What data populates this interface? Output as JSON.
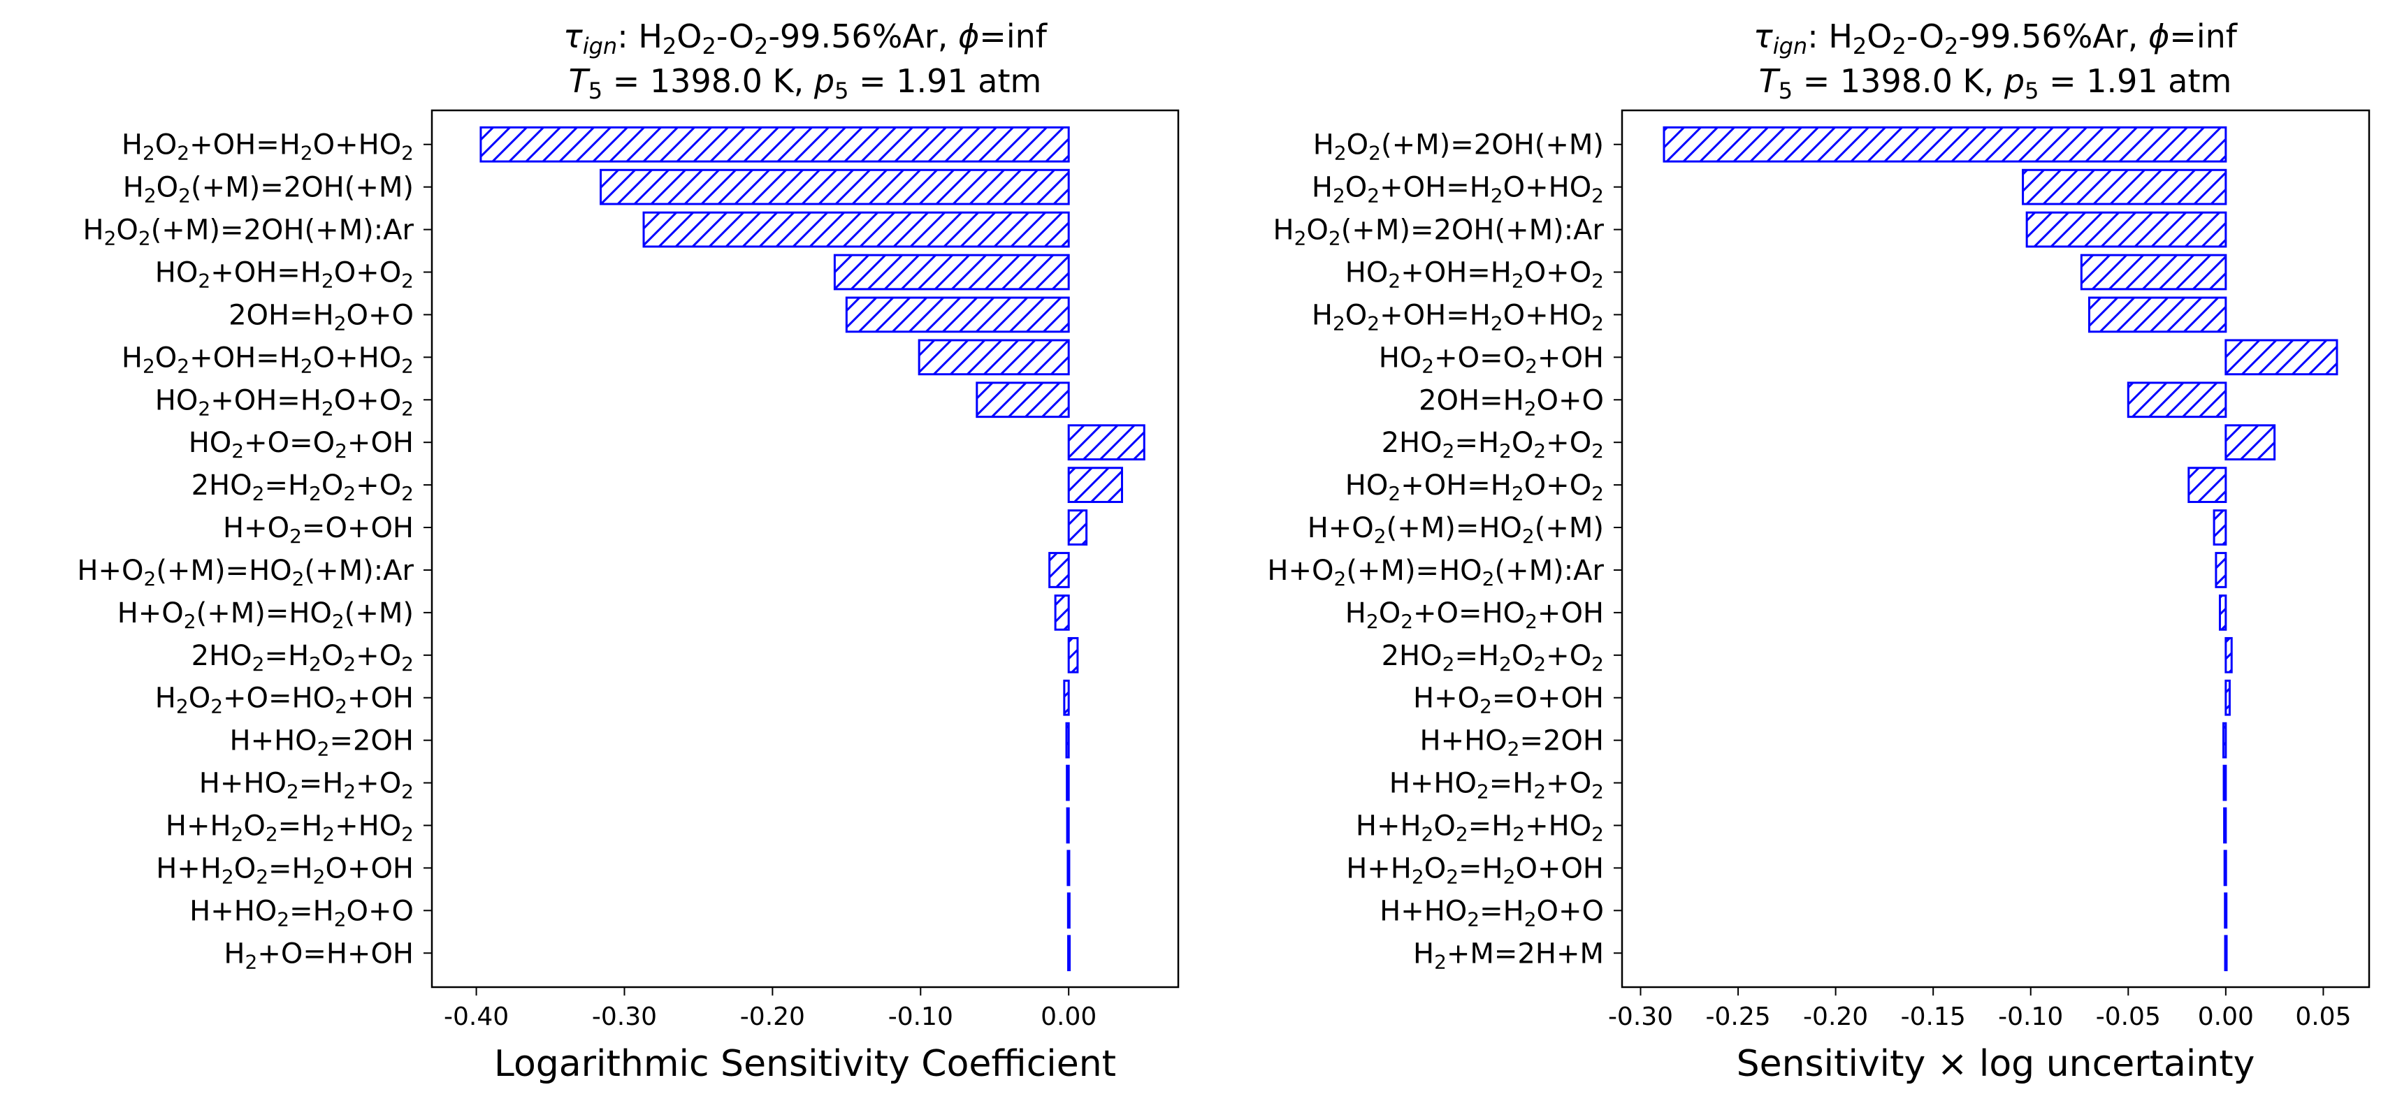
{
  "figure": {
    "panels": 2,
    "bar_color": "#0000ff",
    "hatch": "diagonal-forward"
  },
  "chart_data": [
    {
      "type": "bar",
      "orientation": "horizontal",
      "title_main": "τign: H2O2-O2-99.56%Ar, ϕ=inf",
      "title_conditions": "T5 = 1398.0 K, p5 = 1.91 atm",
      "xlabel": "Logarithmic Sensitivity Coefficient",
      "ylabel": "",
      "xlim": [
        -0.43,
        0.074
      ],
      "xticks": [
        -0.4,
        -0.3,
        -0.2,
        -0.1,
        0.0
      ],
      "xtick_labels": [
        "-0.40",
        "-0.30",
        "-0.20",
        "-0.10",
        "0.00"
      ],
      "grid": false,
      "categories": [
        "H2O2+OH=H2O+HO2",
        "H2O2(+M)=2OH(+M)",
        "H2O2(+M)=2OH(+M):Ar",
        "HO2+OH=H2O+O2",
        "2OH=H2O+O",
        "H2O2+OH=H2O+HO2",
        "HO2+OH=H2O+O2",
        "HO2+O=O2+OH",
        "2HO2=H2O2+O2",
        "H+O2=O+OH",
        "H+O2(+M)=HO2(+M):Ar",
        "H+O2(+M)=HO2(+M)",
        "2HO2=H2O2+O2",
        "H2O2+O=HO2+OH",
        "H+HO2=2OH",
        "H+HO2=H2+O2",
        "H+H2O2=H2+HO2",
        "H+H2O2=H2O+OH",
        "H+HO2=H2O+O",
        "H2+O=H+OH"
      ],
      "categories_markup": [
        "H<sub>2</sub>O<sub>2</sub>+OH=H<sub>2</sub>O+HO<sub>2</sub>",
        "H<sub>2</sub>O<sub>2</sub>(+M)=2OH(+M)",
        "H<sub>2</sub>O<sub>2</sub>(+M)=2OH(+M):Ar",
        "HO<sub>2</sub>+OH=H<sub>2</sub>O+O<sub>2</sub>",
        "2OH=H<sub>2</sub>O+O",
        "H<sub>2</sub>O<sub>2</sub>+OH=H<sub>2</sub>O+HO<sub>2</sub>",
        "HO<sub>2</sub>+OH=H<sub>2</sub>O+O<sub>2</sub>",
        "HO<sub>2</sub>+O=O<sub>2</sub>+OH",
        "2HO<sub>2</sub>=H<sub>2</sub>O<sub>2</sub>+O<sub>2</sub>",
        "H+O<sub>2</sub>=O+OH",
        "H+O<sub>2</sub>(+M)=HO<sub>2</sub>(+M):Ar",
        "H+O<sub>2</sub>(+M)=HO<sub>2</sub>(+M)",
        "2HO<sub>2</sub>=H<sub>2</sub>O<sub>2</sub>+O<sub>2</sub>",
        "H<sub>2</sub>O<sub>2</sub>+O=HO<sub>2</sub>+OH",
        "H+HO<sub>2</sub>=2OH",
        "H+HO<sub>2</sub>=H<sub>2</sub>+O<sub>2</sub>",
        "H+H<sub>2</sub>O<sub>2</sub>=H<sub>2</sub>+HO<sub>2</sub>",
        "H+H<sub>2</sub>O<sub>2</sub>=H<sub>2</sub>O+OH",
        "H+HO<sub>2</sub>=H<sub>2</sub>O+O",
        "H<sub>2</sub>+O=H+OH"
      ],
      "values": [
        -0.397,
        -0.316,
        -0.287,
        -0.158,
        -0.15,
        -0.101,
        -0.062,
        0.051,
        0.036,
        0.012,
        -0.013,
        -0.009,
        0.006,
        -0.003,
        -0.0015,
        -0.0012,
        -0.001,
        -0.0006,
        -0.0004,
        -0.0003
      ]
    },
    {
      "type": "bar",
      "orientation": "horizontal",
      "title_main": "τign: H2O2-O2-99.56%Ar, ϕ=inf",
      "title_conditions": "T5 = 1398.0 K, p5 = 1.91 atm",
      "xlabel": "Sensitivity × log uncertainty",
      "ylabel": "",
      "xlim": [
        -0.3095,
        0.0735
      ],
      "xticks": [
        -0.3,
        -0.25,
        -0.2,
        -0.15,
        -0.1,
        -0.05,
        0.0,
        0.05
      ],
      "xtick_labels": [
        "-0.30",
        "-0.25",
        "-0.20",
        "-0.15",
        "-0.10",
        "-0.05",
        "0.00",
        "0.05"
      ],
      "grid": false,
      "categories": [
        "H2O2(+M)=2OH(+M)",
        "H2O2+OH=H2O+HO2",
        "H2O2(+M)=2OH(+M):Ar",
        "HO2+OH=H2O+O2",
        "H2O2+OH=H2O+HO2",
        "HO2+O=O2+OH",
        "2OH=H2O+O",
        "2HO2=H2O2+O2",
        "HO2+OH=H2O+O2",
        "H+O2(+M)=HO2(+M)",
        "H+O2(+M)=HO2(+M):Ar",
        "H2O2+O=HO2+OH",
        "2HO2=H2O2+O2",
        "H+O2=O+OH",
        "H+HO2=2OH",
        "H+HO2=H2+O2",
        "H+H2O2=H2+HO2",
        "H+H2O2=H2O+OH",
        "H+HO2=H2O+O",
        "H2+M=2H+M"
      ],
      "categories_markup": [
        "H<sub>2</sub>O<sub>2</sub>(+M)=2OH(+M)",
        "H<sub>2</sub>O<sub>2</sub>+OH=H<sub>2</sub>O+HO<sub>2</sub>",
        "H<sub>2</sub>O<sub>2</sub>(+M)=2OH(+M):Ar",
        "HO<sub>2</sub>+OH=H<sub>2</sub>O+O<sub>2</sub>",
        "H<sub>2</sub>O<sub>2</sub>+OH=H<sub>2</sub>O+HO<sub>2</sub>",
        "HO<sub>2</sub>+O=O<sub>2</sub>+OH",
        "2OH=H<sub>2</sub>O+O",
        "2HO<sub>2</sub>=H<sub>2</sub>O<sub>2</sub>+O<sub>2</sub>",
        "HO<sub>2</sub>+OH=H<sub>2</sub>O+O<sub>2</sub>",
        "H+O<sub>2</sub>(+M)=HO<sub>2</sub>(+M)",
        "H+O<sub>2</sub>(+M)=HO<sub>2</sub>(+M):Ar",
        "H<sub>2</sub>O<sub>2</sub>+O=HO<sub>2</sub>+OH",
        "2HO<sub>2</sub>=H<sub>2</sub>O<sub>2</sub>+O<sub>2</sub>",
        "H+O<sub>2</sub>=O+OH",
        "H+HO<sub>2</sub>=2OH",
        "H+HO<sub>2</sub>=H<sub>2</sub>+O<sub>2</sub>",
        "H+H<sub>2</sub>O<sub>2</sub>=H<sub>2</sub>+HO<sub>2</sub>",
        "H+H<sub>2</sub>O<sub>2</sub>=H<sub>2</sub>O+OH",
        "H+HO<sub>2</sub>=H<sub>2</sub>O+O",
        "H<sub>2</sub>+M=2H+M"
      ],
      "values": [
        -0.288,
        -0.104,
        -0.102,
        -0.074,
        -0.07,
        0.057,
        -0.05,
        0.025,
        -0.019,
        -0.006,
        -0.005,
        -0.003,
        0.003,
        0.002,
        -0.0012,
        -0.001,
        -0.0008,
        -0.0006,
        -0.0004,
        -0.0003
      ]
    }
  ]
}
